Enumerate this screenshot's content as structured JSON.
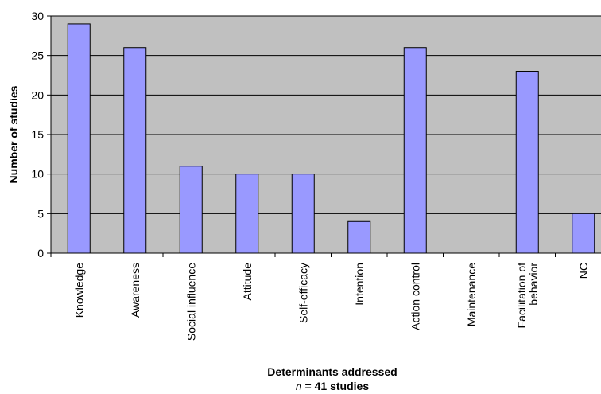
{
  "chart_data": {
    "type": "bar",
    "categories": [
      "Knowledge",
      "Awareness",
      "Social influence",
      "Attitude",
      "Self-efficacy",
      "Intention",
      "Action control",
      "Maintenance",
      "Facilitation of behavior",
      "NC"
    ],
    "category_lines": [
      [
        "Knowledge"
      ],
      [
        "Awareness"
      ],
      [
        "Social influence"
      ],
      [
        "Attitude"
      ],
      [
        "Self-efficacy"
      ],
      [
        "Intention"
      ],
      [
        "Action control"
      ],
      [
        "Maintenance"
      ],
      [
        "Facilitation of",
        "behavior"
      ],
      [
        "NC"
      ]
    ],
    "values": [
      29,
      26,
      11,
      10,
      10,
      4,
      26,
      0,
      23,
      5
    ],
    "ylabel": "Number of studies",
    "xlabel": "Determinants addressed",
    "xlabel_n_symbol": "n",
    "xlabel_n_rest": " = 41 studies",
    "ylim": [
      0,
      30
    ],
    "yticks": [
      0,
      5,
      10,
      15,
      20,
      25,
      30
    ],
    "grid": true,
    "legend": "none",
    "colors": {
      "plot_background": "#c0c0c0",
      "bar_fill": "#9999ff",
      "bar_stroke": "#000000",
      "gridline": "#000000"
    }
  }
}
